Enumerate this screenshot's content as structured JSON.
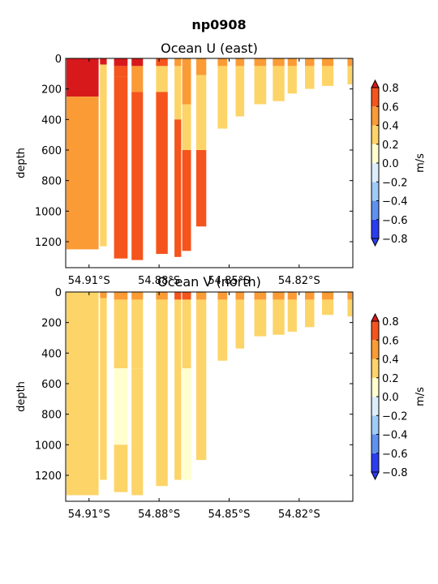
{
  "figure_title": "np0908",
  "palette": {
    "8": "#d7191c",
    "7": "#f5541c",
    "6": "#fb9b35",
    "5": "#fdd468",
    "4": "#ffffcf",
    "3": "#ddeefb",
    "2": "#9fcbf7",
    "1": "#5e91f0",
    "0": "#2b3df0"
  },
  "chart_data": [
    {
      "type": "heatmap",
      "title": "Ocean U (east)",
      "ylabel": "depth",
      "xlim": [
        54.92,
        54.797
      ],
      "ylim": [
        0,
        1370
      ],
      "y_inverted": true,
      "x_ticks": [
        54.91,
        54.88,
        54.85,
        54.82
      ],
      "x_tick_labels": [
        "54.91°S",
        "54.88°S",
        "54.85°S",
        "54.82°S"
      ],
      "y_ticks": [
        0,
        200,
        400,
        600,
        800,
        1000,
        1200
      ],
      "y_tick_labels": [
        "0",
        "200",
        "400",
        "600",
        "800",
        "1000",
        "1200"
      ],
      "colorbar": {
        "label": "m/s",
        "levels": [
          -0.8,
          -0.6,
          -0.4,
          -0.2,
          0.0,
          0.2,
          0.4,
          0.6,
          0.8
        ],
        "tick_labels": [
          "−0.8",
          "−0.6",
          "−0.4",
          "−0.2",
          "0.0",
          "0.2",
          "0.4",
          "0.6",
          "0.8"
        ]
      },
      "stations": [
        {
          "lat": 54.9197,
          "lat2": 54.9059,
          "max_depth": 1250,
          "bands": [
            [
              0,
              250,
              8
            ],
            [
              250,
              1250,
              6
            ]
          ]
        },
        {
          "lat": 54.9053,
          "lat2": 54.9024,
          "max_depth": 1230,
          "bands": [
            [
              0,
              40,
              8
            ],
            [
              40,
              1230,
              5
            ]
          ]
        },
        {
          "lat": 54.8993,
          "lat2": 54.8935,
          "max_depth": 1310,
          "bands": [
            [
              0,
              50,
              8
            ],
            [
              50,
              120,
              7
            ],
            [
              120,
              1310,
              7
            ]
          ]
        },
        {
          "lat": 54.8918,
          "lat2": 54.8869,
          "max_depth": 1320,
          "bands": [
            [
              0,
              50,
              8
            ],
            [
              50,
              220,
              6
            ],
            [
              220,
              1320,
              7
            ]
          ]
        },
        {
          "lat": 54.8813,
          "lat2": 54.8763,
          "max_depth": 1280,
          "bands": [
            [
              0,
              50,
              7
            ],
            [
              50,
              220,
              5
            ],
            [
              220,
              1280,
              7
            ]
          ]
        },
        {
          "lat": 54.8734,
          "lat2": 54.8705,
          "max_depth": 1300,
          "bands": [
            [
              0,
              50,
              6
            ],
            [
              50,
              400,
              5
            ],
            [
              400,
              1300,
              7
            ]
          ]
        },
        {
          "lat": 54.8701,
          "lat2": 54.8663,
          "max_depth": 1260,
          "bands": [
            [
              0,
              300,
              6
            ],
            [
              300,
              600,
              5
            ],
            [
              600,
              1260,
              7
            ]
          ]
        },
        {
          "lat": 54.8641,
          "lat2": 54.8598,
          "max_depth": 1100,
          "bands": [
            [
              0,
              110,
              6
            ],
            [
              110,
              600,
              5
            ],
            [
              600,
              1100,
              7
            ]
          ]
        },
        {
          "lat": 54.8549,
          "lat2": 54.8508,
          "max_depth": 460,
          "bands": [
            [
              0,
              50,
              6
            ],
            [
              50,
              460,
              5
            ]
          ]
        },
        {
          "lat": 54.8472,
          "lat2": 54.8435,
          "max_depth": 380,
          "bands": [
            [
              0,
              50,
              6
            ],
            [
              50,
              380,
              5
            ]
          ]
        },
        {
          "lat": 54.8392,
          "lat2": 54.8341,
          "max_depth": 300,
          "bands": [
            [
              0,
              50,
              6
            ],
            [
              50,
              300,
              5
            ]
          ]
        },
        {
          "lat": 54.8313,
          "lat2": 54.8263,
          "max_depth": 280,
          "bands": [
            [
              0,
              50,
              6
            ],
            [
              50,
              280,
              5
            ]
          ]
        },
        {
          "lat": 54.8249,
          "lat2": 54.821,
          "max_depth": 230,
          "bands": [
            [
              0,
              50,
              6
            ],
            [
              50,
              230,
              5
            ]
          ]
        },
        {
          "lat": 54.8175,
          "lat2": 54.8135,
          "max_depth": 200,
          "bands": [
            [
              0,
              50,
              6
            ],
            [
              50,
              200,
              5
            ]
          ]
        },
        {
          "lat": 54.8102,
          "lat2": 54.8053,
          "max_depth": 180,
          "bands": [
            [
              0,
              50,
              6
            ],
            [
              50,
              180,
              5
            ]
          ]
        },
        {
          "lat": 54.7993,
          "lat2": 54.7973,
          "max_depth": 170,
          "bands": [
            [
              0,
              50,
              6
            ],
            [
              50,
              170,
              5
            ]
          ]
        }
      ]
    },
    {
      "type": "heatmap",
      "title": "Ocean V (north)",
      "ylabel": "depth",
      "xlim": [
        54.92,
        54.797
      ],
      "ylim": [
        0,
        1370
      ],
      "y_inverted": true,
      "x_ticks": [
        54.91,
        54.88,
        54.85,
        54.82
      ],
      "x_tick_labels": [
        "54.91°S",
        "54.88°S",
        "54.85°S",
        "54.82°S"
      ],
      "y_ticks": [
        0,
        200,
        400,
        600,
        800,
        1000,
        1200
      ],
      "y_tick_labels": [
        "0",
        "200",
        "400",
        "600",
        "800",
        "1000",
        "1200"
      ],
      "colorbar": {
        "label": "m/s",
        "levels": [
          -0.8,
          -0.6,
          -0.4,
          -0.2,
          0.0,
          0.2,
          0.4,
          0.6,
          0.8
        ],
        "tick_labels": [
          "−0.8",
          "−0.6",
          "−0.4",
          "−0.2",
          "0.0",
          "0.2",
          "0.4",
          "0.6",
          "0.8"
        ]
      },
      "stations": [
        {
          "lat": 54.9197,
          "lat2": 54.9059,
          "max_depth": 1330,
          "bands": [
            [
              0,
              1330,
              5
            ]
          ]
        },
        {
          "lat": 54.9053,
          "lat2": 54.9024,
          "max_depth": 1230,
          "bands": [
            [
              0,
              40,
              6
            ],
            [
              40,
              1230,
              5
            ]
          ]
        },
        {
          "lat": 54.8993,
          "lat2": 54.8935,
          "max_depth": 1310,
          "bands": [
            [
              0,
              50,
              6
            ],
            [
              50,
              500,
              5
            ],
            [
              500,
              1000,
              4
            ],
            [
              1000,
              1310,
              5
            ]
          ]
        },
        {
          "lat": 54.8918,
          "lat2": 54.8869,
          "max_depth": 1330,
          "bands": [
            [
              0,
              50,
              6
            ],
            [
              50,
              500,
              5
            ],
            [
              500,
              1330,
              5
            ]
          ]
        },
        {
          "lat": 54.8813,
          "lat2": 54.8763,
          "max_depth": 1270,
          "bands": [
            [
              0,
              50,
              6
            ],
            [
              50,
              1270,
              5
            ]
          ]
        },
        {
          "lat": 54.8734,
          "lat2": 54.8705,
          "max_depth": 1230,
          "bands": [
            [
              0,
              50,
              7
            ],
            [
              50,
              1230,
              5
            ]
          ]
        },
        {
          "lat": 54.8701,
          "lat2": 54.8663,
          "max_depth": 1230,
          "bands": [
            [
              0,
              50,
              7
            ],
            [
              50,
              500,
              5
            ],
            [
              500,
              1230,
              4
            ]
          ]
        },
        {
          "lat": 54.8641,
          "lat2": 54.8598,
          "max_depth": 1100,
          "bands": [
            [
              0,
              50,
              6
            ],
            [
              50,
              1100,
              5
            ]
          ]
        },
        {
          "lat": 54.8549,
          "lat2": 54.8508,
          "max_depth": 450,
          "bands": [
            [
              0,
              50,
              6
            ],
            [
              50,
              450,
              5
            ]
          ]
        },
        {
          "lat": 54.8472,
          "lat2": 54.8435,
          "max_depth": 370,
          "bands": [
            [
              0,
              50,
              6
            ],
            [
              50,
              370,
              5
            ]
          ]
        },
        {
          "lat": 54.8392,
          "lat2": 54.8341,
          "max_depth": 290,
          "bands": [
            [
              0,
              50,
              6
            ],
            [
              50,
              290,
              5
            ]
          ]
        },
        {
          "lat": 54.8313,
          "lat2": 54.8263,
          "max_depth": 280,
          "bands": [
            [
              0,
              50,
              6
            ],
            [
              50,
              280,
              5
            ]
          ]
        },
        {
          "lat": 54.8249,
          "lat2": 54.821,
          "max_depth": 260,
          "bands": [
            [
              0,
              50,
              6
            ],
            [
              50,
              260,
              5
            ]
          ]
        },
        {
          "lat": 54.8175,
          "lat2": 54.8135,
          "max_depth": 230,
          "bands": [
            [
              0,
              50,
              6
            ],
            [
              50,
              230,
              5
            ]
          ]
        },
        {
          "lat": 54.8102,
          "lat2": 54.8053,
          "max_depth": 150,
          "bands": [
            [
              0,
              50,
              6
            ],
            [
              50,
              150,
              5
            ]
          ]
        },
        {
          "lat": 54.7993,
          "lat2": 54.7973,
          "max_depth": 160,
          "bands": [
            [
              0,
              50,
              6
            ],
            [
              50,
              160,
              5
            ]
          ]
        }
      ]
    }
  ]
}
